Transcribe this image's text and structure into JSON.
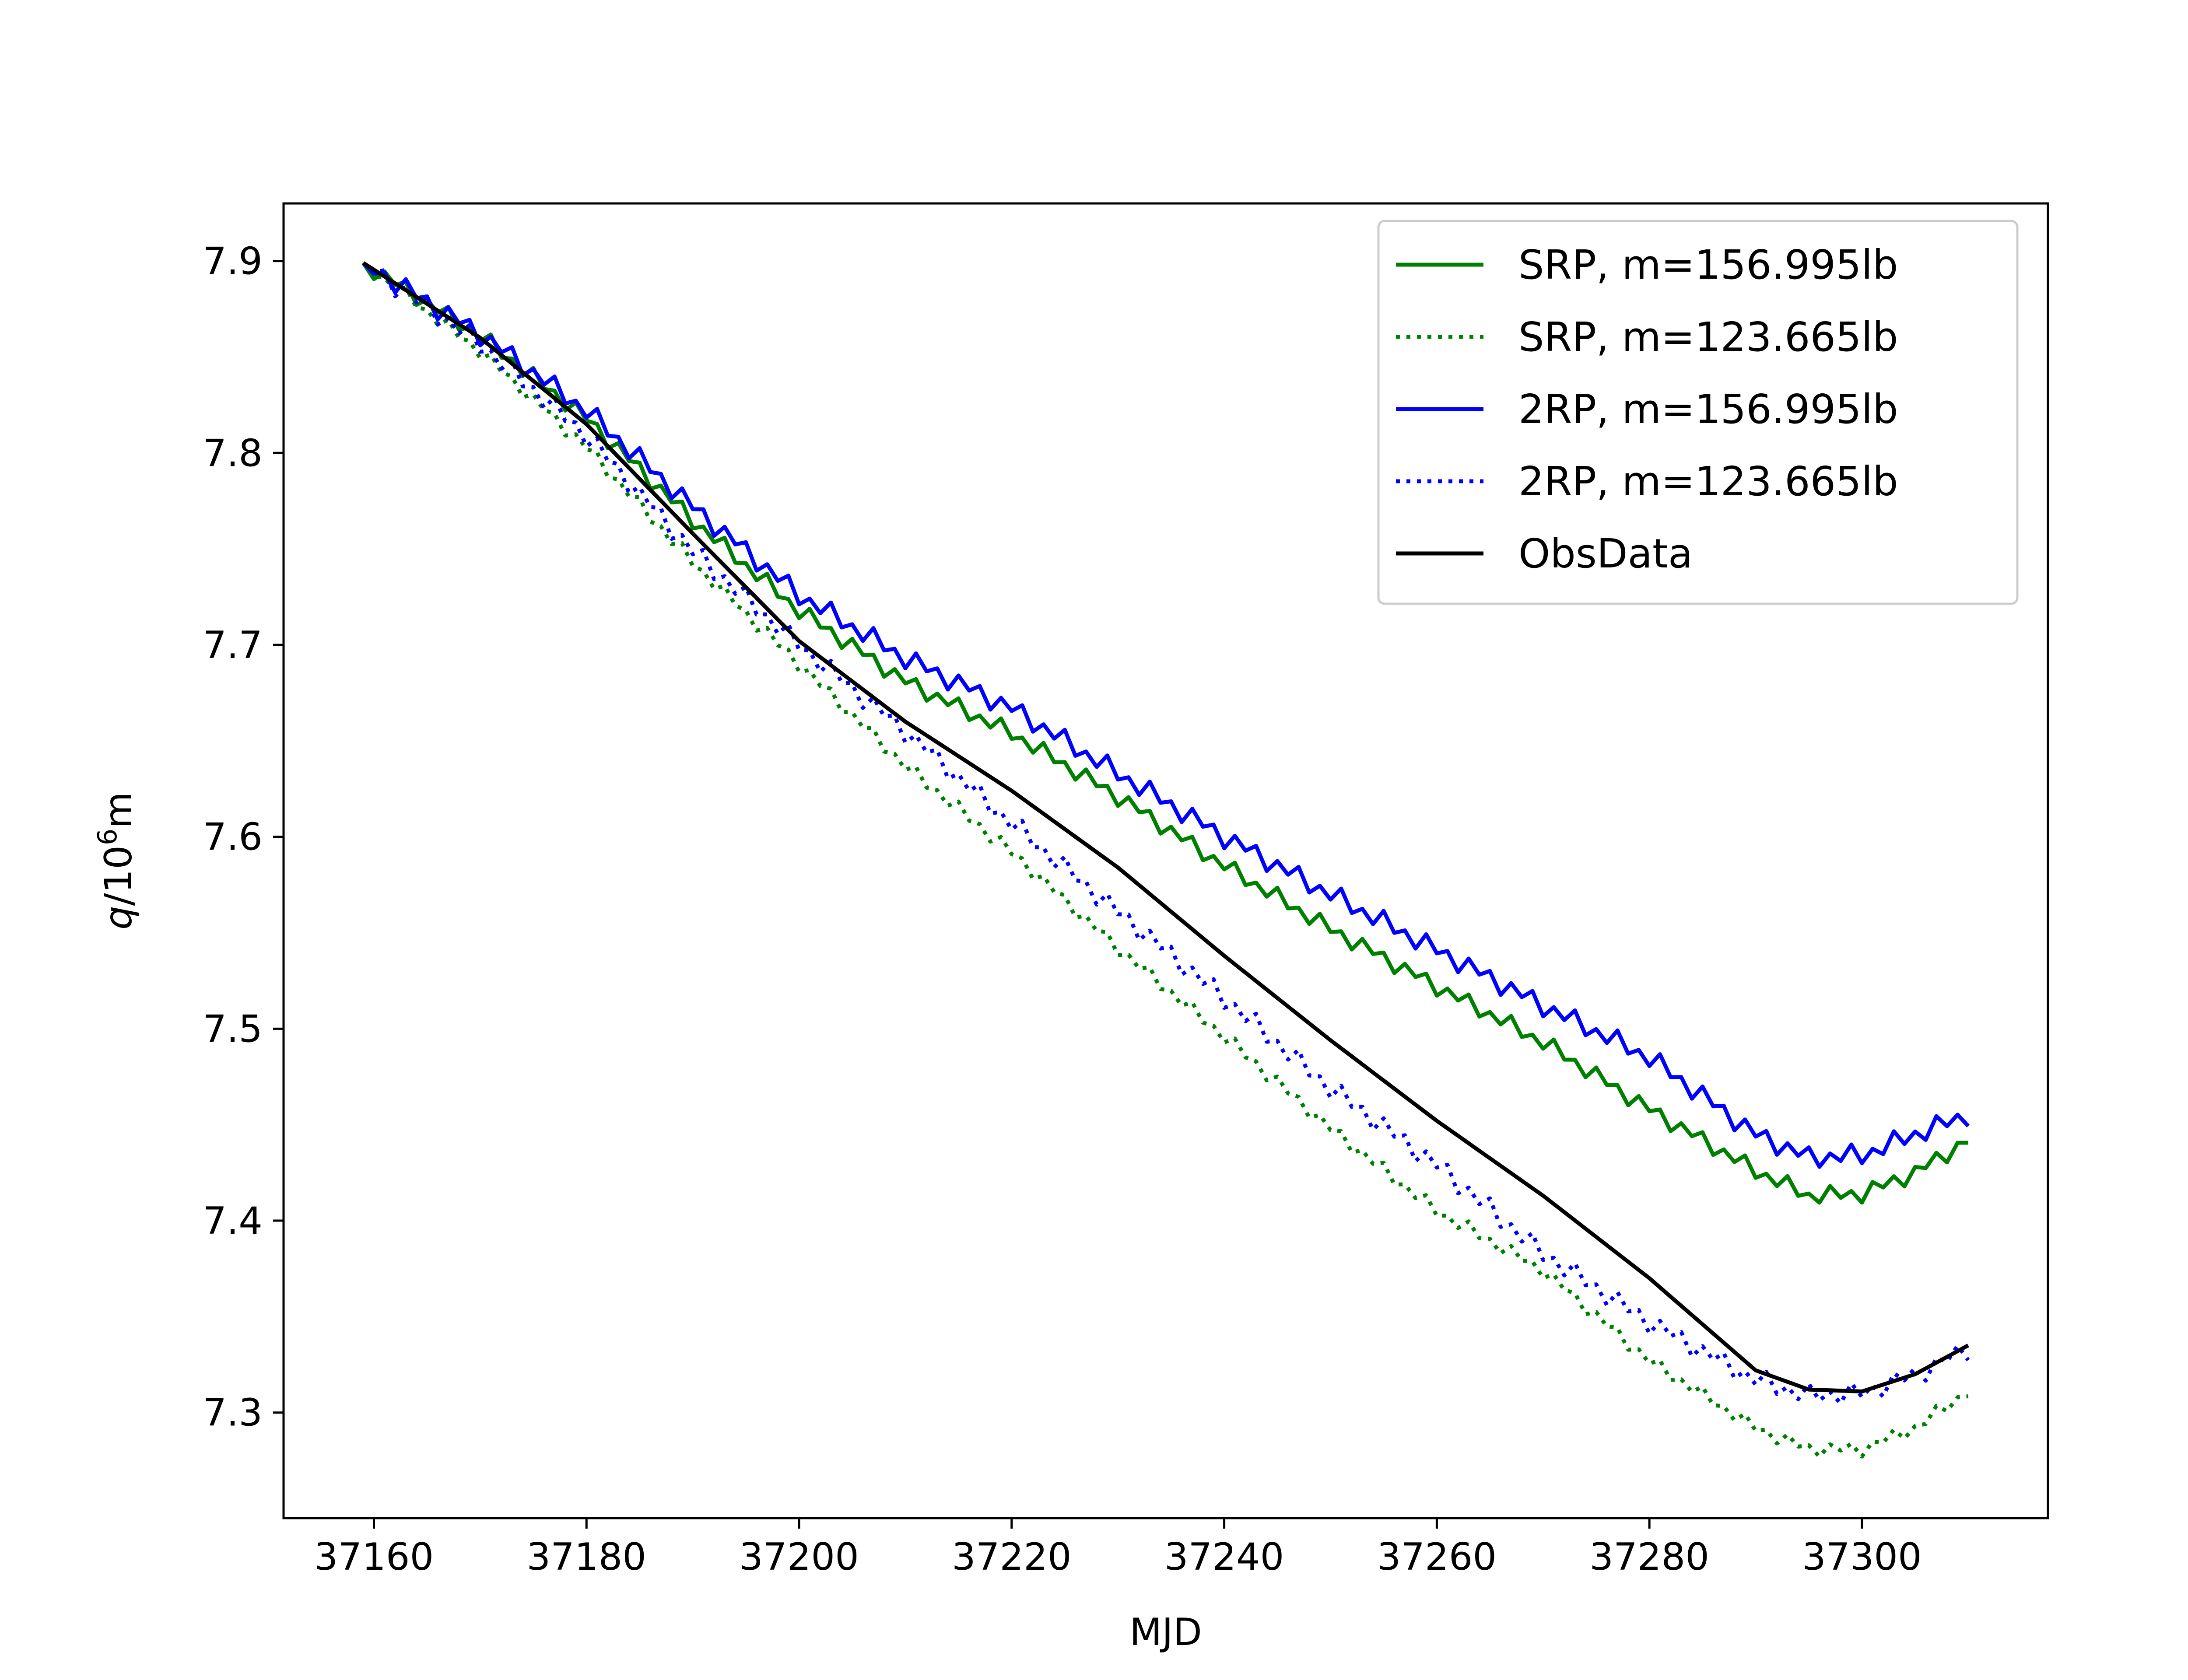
{
  "chart_data": {
    "type": "line",
    "xlabel": "MJD",
    "ylabel_main": "q",
    "ylabel_rest": "/10",
    "ylabel_exp": "6",
    "ylabel_unit": "m",
    "xlim": [
      37151.5,
      37317.5
    ],
    "ylim": [
      7.245,
      7.93
    ],
    "x_ticks": [
      37160,
      37180,
      37200,
      37220,
      37240,
      37260,
      37280,
      37300
    ],
    "x_tick_labels": [
      "37160",
      "37180",
      "37200",
      "37220",
      "37240",
      "37260",
      "37280",
      "37300"
    ],
    "y_ticks": [
      7.3,
      7.4,
      7.5,
      7.6,
      7.7,
      7.8,
      7.9
    ],
    "y_tick_labels": [
      "7.3",
      "7.4",
      "7.5",
      "7.6",
      "7.7",
      "7.8",
      "7.9"
    ],
    "grid": false,
    "legend_position": "top-right",
    "x": [
      37159,
      37170,
      37180,
      37190,
      37200,
      37210,
      37220,
      37230,
      37240,
      37250,
      37260,
      37270,
      37280,
      37290,
      37295,
      37300,
      37305,
      37310
    ],
    "series": [
      {
        "name": "SRP, m=156.995lb",
        "style": "solid",
        "color": "#008000",
        "jitter": 0.005,
        "values": [
          7.899,
          7.861,
          7.818,
          7.765,
          7.718,
          7.681,
          7.654,
          7.621,
          7.585,
          7.552,
          7.522,
          7.493,
          7.458,
          7.426,
          7.413,
          7.414,
          7.425,
          7.442
        ]
      },
      {
        "name": "SRP, m=123.665lb",
        "style": "dotted",
        "color": "#008000",
        "jitter": 0.004,
        "values": [
          7.899,
          7.853,
          7.803,
          7.743,
          7.69,
          7.637,
          7.592,
          7.542,
          7.496,
          7.448,
          7.405,
          7.374,
          7.327,
          7.292,
          7.281,
          7.281,
          7.292,
          7.311
        ]
      },
      {
        "name": "2RP, m=156.995lb",
        "style": "solid",
        "color": "#0000ff",
        "jitter": 0.006,
        "values": [
          7.899,
          7.862,
          7.822,
          7.772,
          7.726,
          7.693,
          7.667,
          7.633,
          7.6,
          7.57,
          7.541,
          7.512,
          7.485,
          7.445,
          7.433,
          7.434,
          7.445,
          7.455
        ]
      },
      {
        "name": "2RP, m=123.665lb",
        "style": "dotted",
        "color": "#0000ff",
        "jitter": 0.006,
        "values": [
          7.899,
          7.857,
          7.809,
          7.749,
          7.7,
          7.655,
          7.607,
          7.561,
          7.516,
          7.469,
          7.429,
          7.383,
          7.347,
          7.317,
          7.309,
          7.31,
          7.32,
          7.333
        ]
      },
      {
        "name": "ObsData",
        "style": "solid",
        "color": "#000000",
        "jitter": 0.0,
        "values": [
          7.899,
          7.86,
          7.815,
          7.758,
          7.702,
          7.66,
          7.624,
          7.584,
          7.538,
          7.494,
          7.452,
          7.413,
          7.37,
          7.322,
          7.312,
          7.311,
          7.32,
          7.335
        ]
      }
    ]
  }
}
